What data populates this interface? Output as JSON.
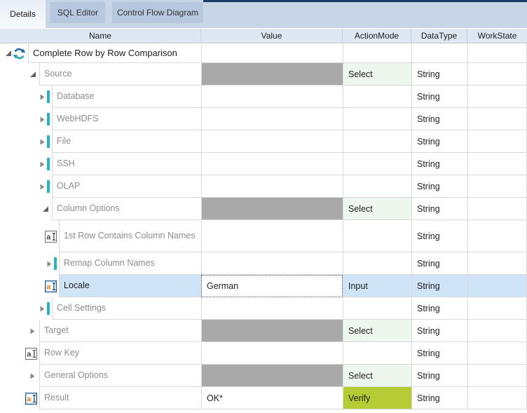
{
  "tabs": [
    {
      "label": "Details",
      "active": true
    },
    {
      "label": "SQL Editor",
      "active": false
    },
    {
      "label": "Control Flow Diagram",
      "active": false
    }
  ],
  "columns": [
    "Name",
    "Value",
    "ActionMode",
    "DataType",
    "WorkState"
  ],
  "colors": {
    "accent_navy": "#1d3a66",
    "teal_attribute": "#29b2c2",
    "value_disabled_gray": "#a9a9a9",
    "actionmode_select_bg": "#edf7ee",
    "actionmode_verify_bg": "#b5cc34",
    "selected_row_bg": "#cfe4f6",
    "edit_icon_orange": "#e87a1e",
    "refresh_blue": "#2368ae",
    "refresh_teal": "#2e9eb4"
  },
  "rows": [
    {
      "name": "Complete Row by Row Comparison",
      "depth": 0,
      "icon": "refresh-icon",
      "expander": "expanded",
      "value": "",
      "action": "",
      "datatype": "",
      "workstate": "",
      "value_gray": false,
      "selected": false,
      "dark_name": true,
      "tall": false,
      "root": true
    },
    {
      "name": "Source",
      "depth": 1,
      "icon": "group-filled-icon",
      "expander": "expanded",
      "value": "",
      "action": "Select",
      "datatype": "String",
      "workstate": "",
      "value_gray": true,
      "selected": false,
      "dark_name": false,
      "tall": false,
      "root": false
    },
    {
      "name": "Database",
      "depth": 2,
      "icon": "group-empty-icon",
      "expander": "collapsed",
      "value": "",
      "action": "",
      "datatype": "String",
      "workstate": "",
      "value_gray": false,
      "selected": false,
      "dark_name": false,
      "tall": false,
      "root": false
    },
    {
      "name": "WebHDFS",
      "depth": 2,
      "icon": "group-empty-icon",
      "expander": "collapsed",
      "value": "",
      "action": "",
      "datatype": "String",
      "workstate": "",
      "value_gray": false,
      "selected": false,
      "dark_name": false,
      "tall": false,
      "root": false
    },
    {
      "name": "File",
      "depth": 2,
      "icon": "group-empty-icon",
      "expander": "collapsed",
      "value": "",
      "action": "",
      "datatype": "String",
      "workstate": "",
      "value_gray": false,
      "selected": false,
      "dark_name": false,
      "tall": false,
      "root": false
    },
    {
      "name": "SSH",
      "depth": 2,
      "icon": "group-empty-icon",
      "expander": "collapsed",
      "value": "",
      "action": "",
      "datatype": "String",
      "workstate": "",
      "value_gray": false,
      "selected": false,
      "dark_name": false,
      "tall": false,
      "root": false
    },
    {
      "name": "OLAP",
      "depth": 2,
      "icon": "group-empty-icon",
      "expander": "collapsed",
      "value": "",
      "action": "",
      "datatype": "String",
      "workstate": "",
      "value_gray": false,
      "selected": false,
      "dark_name": false,
      "tall": false,
      "root": false
    },
    {
      "name": "Column Options",
      "depth": 2,
      "icon": "group-filled-icon",
      "expander": "expanded",
      "value": "",
      "action": "Select",
      "datatype": "String",
      "workstate": "",
      "value_gray": true,
      "selected": false,
      "dark_name": false,
      "tall": false,
      "root": false
    },
    {
      "name": "1st Row Contains Column Names",
      "depth": 3,
      "icon": "edit-icon",
      "expander": null,
      "value": "",
      "action": "",
      "datatype": "String",
      "workstate": "",
      "value_gray": false,
      "selected": false,
      "dark_name": false,
      "tall": true,
      "root": false
    },
    {
      "name": "Remap Column Names",
      "depth": 3,
      "icon": "group-empty-icon",
      "expander": "collapsed",
      "value": "",
      "action": "",
      "datatype": "String",
      "workstate": "",
      "value_gray": false,
      "selected": false,
      "dark_name": false,
      "tall": false,
      "root": false
    },
    {
      "name": "Locale",
      "depth": 3,
      "icon": "edit-active-icon",
      "expander": null,
      "value": "German",
      "action": "Input",
      "datatype": "String",
      "workstate": "",
      "value_gray": false,
      "selected": true,
      "dark_name": true,
      "tall": false,
      "root": false
    },
    {
      "name": "Cell Settings",
      "depth": 2,
      "icon": "group-empty-icon",
      "expander": "collapsed",
      "value": "",
      "action": "",
      "datatype": "String",
      "workstate": "",
      "value_gray": false,
      "selected": false,
      "dark_name": false,
      "tall": false,
      "root": false
    },
    {
      "name": "Target",
      "depth": 1,
      "icon": "group-filled-icon",
      "expander": "collapsed",
      "value": "",
      "action": "Select",
      "datatype": "String",
      "workstate": "",
      "value_gray": true,
      "selected": false,
      "dark_name": false,
      "tall": false,
      "root": false
    },
    {
      "name": "Row Key",
      "depth": 1,
      "icon": "edit-icon",
      "expander": null,
      "value": "",
      "action": "",
      "datatype": "String",
      "workstate": "",
      "value_gray": false,
      "selected": false,
      "dark_name": false,
      "tall": false,
      "root": false
    },
    {
      "name": "General Options",
      "depth": 1,
      "icon": "group-filled-icon",
      "expander": "collapsed",
      "value": "",
      "action": "Select",
      "datatype": "String",
      "workstate": "",
      "value_gray": true,
      "selected": false,
      "dark_name": false,
      "tall": false,
      "root": false
    },
    {
      "name": "Result",
      "depth": 1,
      "icon": "edit-active-icon",
      "expander": null,
      "value": "OK*",
      "action": "Verify",
      "datatype": "String",
      "workstate": "",
      "value_gray": false,
      "selected": false,
      "dark_name": false,
      "tall": false,
      "root": false
    }
  ]
}
